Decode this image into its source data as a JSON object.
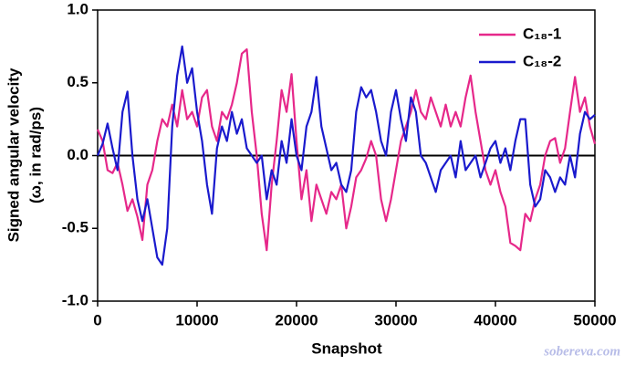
{
  "chart_data": {
    "type": "line",
    "xlabel": "Snapshot",
    "ylabel": [
      "Signed angular velocity",
      "(ω, in rad/ps)"
    ],
    "annotation": "sobereva.com",
    "reference_line": 0,
    "xlim": [
      0,
      50000
    ],
    "xticks": [
      0,
      10000,
      20000,
      30000,
      40000,
      50000
    ],
    "ylim": [
      -1.0,
      1.0
    ],
    "yticks": [
      {
        "value": -1.0,
        "label": "-1.0"
      },
      -0.5,
      {
        "value": 0.0,
        "label": "0.0"
      },
      0.5,
      {
        "value": 1.0,
        "label": "1.0"
      }
    ],
    "grid": false,
    "legend": "upper right",
    "x": [
      0,
      500,
      1000,
      1500,
      2000,
      2500,
      3000,
      3500,
      4000,
      4500,
      5000,
      5500,
      6000,
      6500,
      7000,
      7500,
      8000,
      8500,
      9000,
      9500,
      10000,
      10500,
      11000,
      11500,
      12000,
      12500,
      13000,
      13500,
      14000,
      14500,
      15000,
      15500,
      16000,
      16500,
      17000,
      17500,
      18000,
      18500,
      19000,
      19500,
      20000,
      20500,
      21000,
      21500,
      22000,
      22500,
      23000,
      23500,
      24000,
      24500,
      25000,
      25500,
      26000,
      26500,
      27000,
      27500,
      28000,
      28500,
      29000,
      29500,
      30000,
      30500,
      31000,
      31500,
      32000,
      32500,
      33000,
      33500,
      34000,
      34500,
      35000,
      35500,
      36000,
      36500,
      37000,
      37500,
      38000,
      38500,
      39000,
      39500,
      40000,
      40500,
      41000,
      41500,
      42000,
      42500,
      43000,
      43500,
      44000,
      44500,
      45000,
      45500,
      46000,
      46500,
      47000,
      47500,
      48000,
      48500,
      49000,
      49500,
      50000
    ],
    "series": [
      {
        "name": "C₁₈-1",
        "color": "#e6288a",
        "values": [
          0.18,
          0.1,
          -0.1,
          -0.12,
          -0.05,
          -0.2,
          -0.38,
          -0.3,
          -0.42,
          -0.58,
          -0.2,
          -0.1,
          0.1,
          0.25,
          0.2,
          0.35,
          0.2,
          0.45,
          0.25,
          0.3,
          0.2,
          0.4,
          0.45,
          0.2,
          0.1,
          0.3,
          0.25,
          0.35,
          0.5,
          0.7,
          0.73,
          0.3,
          0.0,
          -0.4,
          -0.65,
          -0.2,
          0.1,
          0.45,
          0.3,
          0.56,
          0.1,
          -0.3,
          -0.1,
          -0.45,
          -0.2,
          -0.3,
          -0.4,
          -0.25,
          -0.3,
          -0.2,
          -0.5,
          -0.35,
          -0.15,
          -0.1,
          -0.02,
          0.1,
          0.0,
          -0.3,
          -0.45,
          -0.3,
          -0.1,
          0.1,
          0.2,
          0.3,
          0.45,
          0.3,
          0.25,
          0.4,
          0.3,
          0.2,
          0.35,
          0.2,
          0.3,
          0.2,
          0.4,
          0.55,
          0.3,
          0.1,
          -0.1,
          -0.2,
          -0.1,
          -0.25,
          -0.35,
          -0.6,
          -0.62,
          -0.65,
          -0.4,
          -0.45,
          -0.3,
          -0.2,
          0.0,
          0.1,
          0.12,
          -0.05,
          0.05,
          0.3,
          0.54,
          0.3,
          0.4,
          0.2,
          0.08
        ]
      },
      {
        "name": "C₁₈-2",
        "color": "#1a1acd",
        "values": [
          0.0,
          0.08,
          0.22,
          0.05,
          -0.1,
          0.3,
          0.44,
          0.0,
          -0.3,
          -0.45,
          -0.3,
          -0.5,
          -0.7,
          -0.75,
          -0.5,
          0.2,
          0.55,
          0.75,
          0.5,
          0.6,
          0.3,
          0.1,
          -0.2,
          -0.4,
          0.05,
          0.2,
          0.1,
          0.3,
          0.15,
          0.25,
          0.05,
          0.0,
          -0.05,
          0.0,
          -0.3,
          -0.1,
          -0.2,
          0.1,
          -0.05,
          0.25,
          0.0,
          -0.1,
          0.2,
          0.3,
          0.54,
          0.2,
          0.05,
          -0.1,
          -0.05,
          -0.2,
          -0.25,
          -0.1,
          0.3,
          0.47,
          0.4,
          0.45,
          0.3,
          0.1,
          0.0,
          0.3,
          0.45,
          0.25,
          0.1,
          0.4,
          0.3,
          0.0,
          -0.05,
          -0.15,
          -0.25,
          -0.1,
          -0.05,
          0.0,
          -0.15,
          0.1,
          -0.1,
          -0.05,
          0.0,
          -0.15,
          -0.05,
          0.05,
          0.1,
          -0.05,
          0.05,
          -0.1,
          0.1,
          0.25,
          0.25,
          -0.2,
          -0.35,
          -0.3,
          -0.1,
          -0.15,
          -0.25,
          -0.15,
          -0.2,
          0.0,
          -0.15,
          0.15,
          0.3,
          0.25,
          0.28
        ]
      }
    ]
  }
}
